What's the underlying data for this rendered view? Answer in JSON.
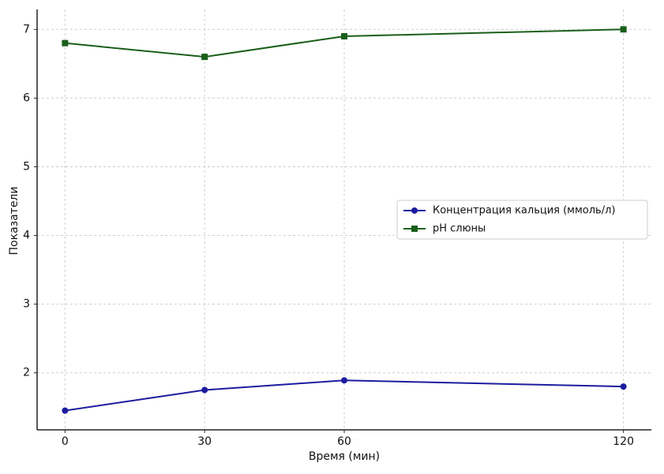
{
  "chart_data": {
    "type": "line",
    "x_label": "Время (мин)",
    "y_label": "Показатели",
    "x": [
      0,
      30,
      60,
      120
    ],
    "series": [
      {
        "name": "Концентрация кальция (ммоль/л)",
        "color": "#1c1ca0",
        "marker": "circle",
        "values": [
          1.45,
          1.75,
          1.89,
          1.8
        ]
      },
      {
        "name": "pH слюны",
        "color": "#1a5e1a",
        "marker": "square",
        "values": [
          6.8,
          6.6,
          6.9,
          7.0
        ]
      }
    ],
    "xlim": [
      -6,
      126
    ],
    "xticks": [
      0,
      30,
      60,
      120
    ],
    "ylim": [
      1.17,
      7.29
    ],
    "yticks": [
      2,
      3,
      4,
      5,
      6,
      7
    ],
    "grid": true,
    "legend": "center right"
  }
}
